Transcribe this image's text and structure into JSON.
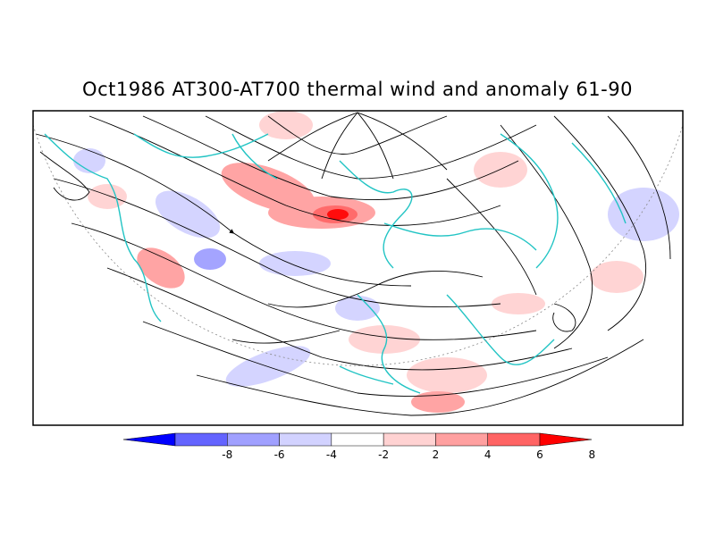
{
  "title": "Oct1986 AT300-AT700 thermal wind and anomaly 61-90",
  "colorbar": {
    "tick_labels": [
      "-8",
      "-6",
      "-4",
      "-2",
      "2",
      "4",
      "6",
      "8"
    ],
    "bins": [
      {
        "color": "#0000ff"
      },
      {
        "color": "#6464ff"
      },
      {
        "color": "#a0a0ff"
      },
      {
        "color": "#d2d2ff"
      },
      {
        "color": "#ffffff"
      },
      {
        "color": "#ffd2d2"
      },
      {
        "color": "#ffa0a0"
      },
      {
        "color": "#ff6464"
      },
      {
        "color": "#ff0000"
      }
    ]
  },
  "colors": {
    "coastline": "#22c4c4",
    "streamline": "#000000",
    "frame": "#000000"
  }
}
